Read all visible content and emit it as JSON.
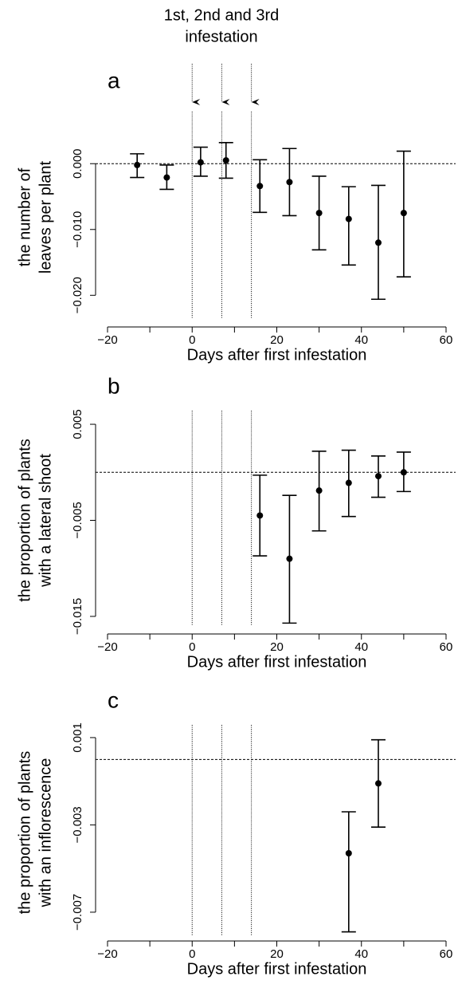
{
  "chart_data": [
    {
      "type": "scatter",
      "panel_label": "a",
      "annotation": [
        "1st, 2nd and 3rd",
        "infestation"
      ],
      "ylabel": [
        "the number of",
        "leaves per plant"
      ],
      "xlabel": "Days after first infestation",
      "x": [
        -13,
        -6,
        2,
        8,
        16,
        23,
        30,
        37,
        44,
        50
      ],
      "values": [
        -0.0002,
        -0.0021,
        0.0002,
        0.0005,
        -0.0034,
        -0.0028,
        -0.0075,
        -0.0084,
        -0.012,
        -0.0075
      ],
      "lower": [
        -0.0021,
        -0.0039,
        -0.0019,
        -0.0022,
        -0.0074,
        -0.0079,
        -0.0131,
        -0.0154,
        -0.0206,
        -0.0172
      ],
      "upper": [
        0.0015,
        -0.0002,
        0.0025,
        0.0032,
        0.0006,
        0.0023,
        -0.0019,
        -0.0035,
        -0.0033,
        0.0019
      ],
      "color": "#000000",
      "xlim": [
        -20,
        60
      ],
      "xticks": [
        {
          "value": -20,
          "label": "−20"
        },
        0,
        20,
        40,
        60
      ],
      "xminor_ticks": [
        -10,
        10,
        30,
        50
      ],
      "ylim": [
        -0.0236,
        0.0073
      ],
      "yticks": [
        {
          "value": -0.02,
          "label": "−0.020"
        },
        {
          "value": -0.01,
          "label": "−0.010"
        },
        {
          "value": 0,
          "label": "0.000"
        }
      ],
      "hline": 0,
      "vlines": [
        0,
        7,
        14
      ]
    },
    {
      "type": "scatter",
      "panel_label": "b",
      "ylabel": [
        "the proportion of plants",
        "with a lateral shoot"
      ],
      "xlabel": "Days after first infestation",
      "x": [
        16,
        23,
        30,
        37,
        44,
        50
      ],
      "values": [
        -0.0045,
        -0.009,
        -0.0019,
        -0.0011,
        -0.0004,
        0.0
      ],
      "lower": [
        -0.0087,
        -0.0157,
        -0.0061,
        -0.0046,
        -0.0026,
        -0.002
      ],
      "upper": [
        -0.0003,
        -0.0024,
        0.0022,
        0.0023,
        0.0017,
        0.0021
      ],
      "color": "#000000",
      "xlim": [
        -20,
        60
      ],
      "xticks": [
        {
          "value": -20,
          "label": "−20"
        },
        0,
        20,
        40,
        60
      ],
      "xminor_ticks": [
        -10,
        10,
        30,
        50
      ],
      "ylim": [
        -0.016,
        0.006
      ],
      "yticks": [
        {
          "value": -0.015,
          "label": "−0.015"
        },
        {
          "value": -0.005,
          "label": "−0.005"
        },
        0.005
      ],
      "hline": 0,
      "vlines": [
        0,
        7,
        14
      ]
    },
    {
      "type": "scatter",
      "panel_label": "c",
      "ylabel": [
        "the proportion of plants",
        "with an inflorescence"
      ],
      "xlabel": "Days after first infestation",
      "x": [
        37,
        44
      ],
      "values": [
        -0.0043,
        -0.0011
      ],
      "lower": [
        -0.0079,
        -0.0031
      ],
      "upper": [
        -0.0024,
        0.0009
      ],
      "color": "#000000",
      "xlim": [
        -20,
        60
      ],
      "xticks": [
        {
          "value": -20,
          "label": "−20"
        },
        0,
        20,
        40,
        60
      ],
      "xminor_ticks": [
        -10,
        10,
        30,
        50
      ],
      "ylim": [
        -0.0081,
        0.0014
      ],
      "yticks": [
        {
          "value": -0.007,
          "label": "−0.007"
        },
        {
          "value": -0.003,
          "label": "−0.003"
        },
        0.001
      ],
      "hline": 0,
      "vlines": [
        0,
        7,
        14
      ]
    }
  ]
}
